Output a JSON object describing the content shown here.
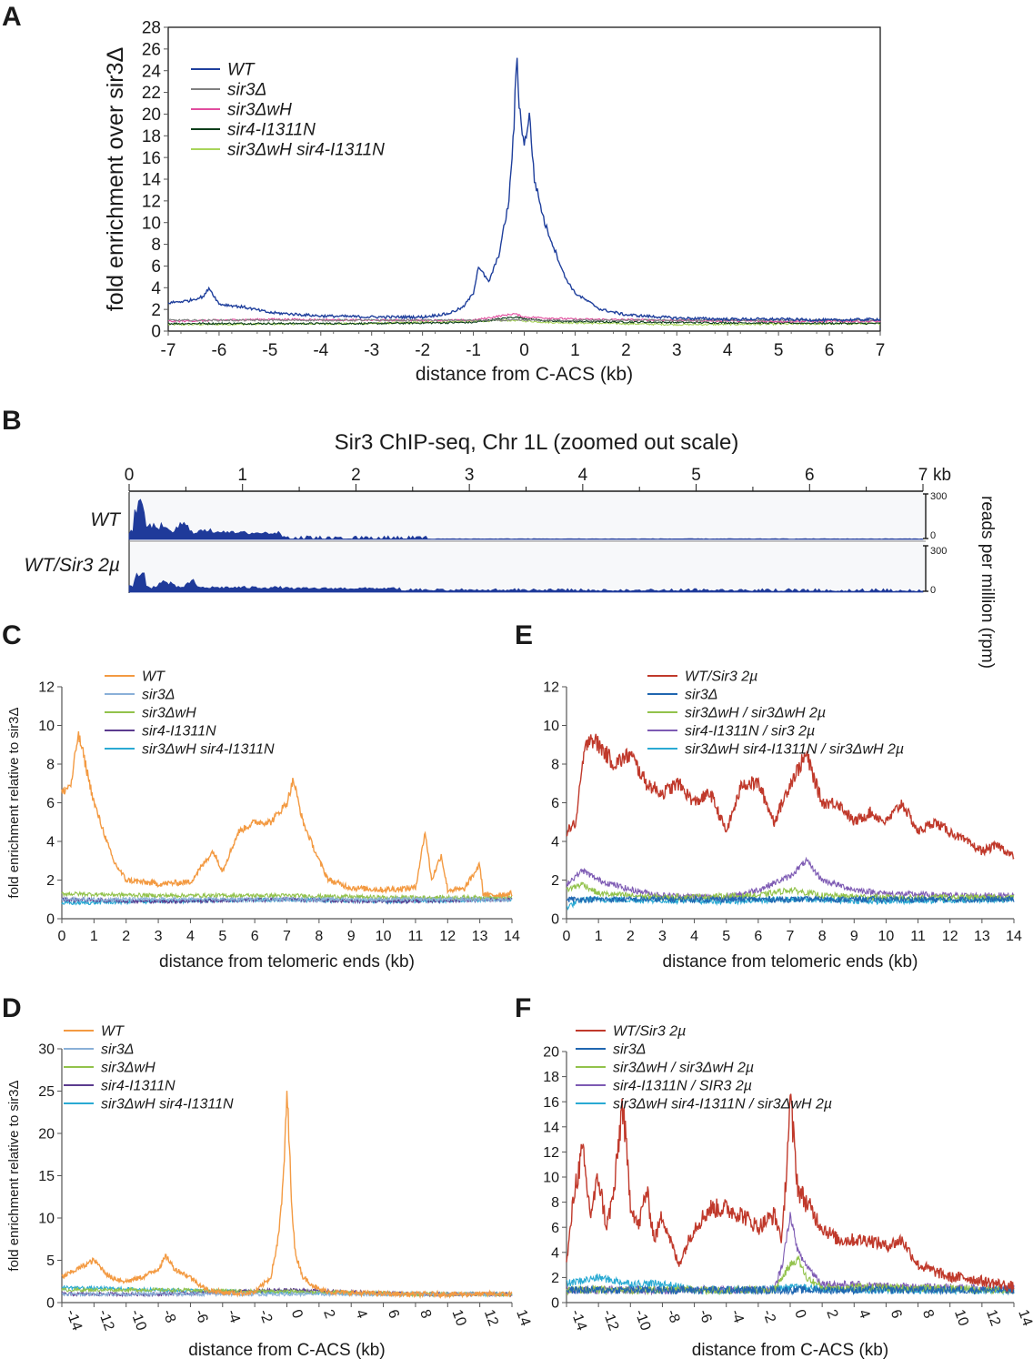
{
  "panel_labels": [
    "A",
    "B",
    "C",
    "D",
    "E",
    "F"
  ],
  "panel_b": {
    "title": "Sir3 ChIP-seq, Chr 1L (zoomed out scale)",
    "axis_ticks": [
      "0",
      "1",
      "2",
      "3",
      "4",
      "5",
      "6"
    ],
    "axis_end_label": "7",
    "axis_unit": "kb",
    "y_axis_label": "reads per million (rpm)",
    "scale_max": "300",
    "scale_min": "0",
    "track_names": [
      "WT",
      "WT/Sir3 2µ"
    ]
  },
  "chart_data": [
    {
      "panel": "A",
      "type": "line",
      "title": "",
      "xlabel": "distance from C-ACS (kb)",
      "ylabel": "fold enrichment over sir3Δ",
      "xlim": [
        -7,
        7
      ],
      "ylim": [
        0,
        28
      ],
      "x_ticks": [
        "-7",
        "-6",
        "-5",
        "-4",
        "-3",
        "-2",
        "-1",
        "0",
        "1",
        "2",
        "3",
        "4",
        "5",
        "6",
        "7"
      ],
      "y_ticks": [
        "0",
        "2",
        "4",
        "6",
        "8",
        "10",
        "12",
        "14",
        "16",
        "18",
        "20",
        "22",
        "24",
        "26",
        "28"
      ],
      "legend": [
        "WT",
        "sir3Δ",
        "sir3ΔwH",
        "sir4-I1311N",
        "sir3ΔwH sir4-I1311N"
      ],
      "legend_position": "top-left",
      "series": [
        {
          "name": "WT",
          "color": "#1f3f9c",
          "x": [
            -7,
            -6.6,
            -6.3,
            -6.2,
            -6,
            -5.5,
            -5,
            -4,
            -3,
            -2,
            -1.5,
            -1.2,
            -1,
            -0.9,
            -0.7,
            -0.5,
            -0.3,
            -0.2,
            -0.15,
            -0.1,
            0,
            0.1,
            0.2,
            0.4,
            0.6,
            0.8,
            1,
            1.5,
            2,
            3,
            4,
            5,
            6,
            7
          ],
          "values": [
            2.6,
            2.8,
            3.2,
            4,
            2.5,
            2.2,
            1.7,
            1.4,
            1.3,
            1.3,
            1.6,
            2.2,
            3.5,
            6,
            4.5,
            7,
            12,
            19,
            25.5,
            21,
            17,
            20,
            14,
            10,
            7.5,
            5,
            3.5,
            2,
            1.5,
            1.2,
            1.1,
            1.1,
            1,
            1.1
          ]
        },
        {
          "name": "sir3Δ",
          "color": "#808080",
          "x": [
            -7,
            -3,
            0,
            3,
            7
          ],
          "values": [
            1,
            1,
            1,
            1,
            1
          ]
        },
        {
          "name": "sir3ΔwH",
          "color": "#e14d9e",
          "x": [
            -7,
            -5,
            -3,
            -1,
            -0.2,
            0,
            1,
            3,
            5,
            7
          ],
          "values": [
            0.9,
            1.1,
            1,
            1,
            1.6,
            1.3,
            1.1,
            1,
            0.9,
            0.9
          ]
        },
        {
          "name": "sir4-I1311N",
          "color": "#0b3d1a",
          "x": [
            -7,
            -3,
            -1,
            -0.2,
            0.5,
            3,
            7
          ],
          "values": [
            0.7,
            0.7,
            0.8,
            1.3,
            0.9,
            0.8,
            0.7
          ]
        },
        {
          "name": "sir3ΔwH sir4-I1311N",
          "color": "#a8d45a",
          "x": [
            -7,
            -3,
            -0.2,
            0.5,
            3,
            7
          ],
          "values": [
            0.6,
            0.7,
            1,
            0.8,
            0.6,
            0.7
          ]
        }
      ]
    },
    {
      "panel": "C",
      "type": "line",
      "xlabel": "distance from telomeric ends (kb)",
      "ylabel": "fold enrichment relative to sir3Δ",
      "xlim": [
        0,
        14
      ],
      "ylim": [
        0,
        12
      ],
      "x_ticks": [
        "0",
        "1",
        "2",
        "3",
        "4",
        "5",
        "6",
        "7",
        "8",
        "9",
        "10",
        "11",
        "12",
        "13",
        "14"
      ],
      "y_ticks": [
        "0",
        "2",
        "4",
        "6",
        "8",
        "10",
        "12"
      ],
      "legend": [
        "WT",
        "sir3Δ",
        "sir3ΔwH",
        "sir4-I1311N",
        "sir3ΔwH sir4-I1311N"
      ],
      "legend_position": "top-center",
      "series": [
        {
          "name": "WT",
          "color": "#f39a42",
          "x": [
            0,
            0.3,
            0.5,
            0.6,
            0.8,
            1,
            1.3,
            1.6,
            2,
            3,
            4,
            4.7,
            5,
            5.5,
            6,
            6.5,
            7,
            7.2,
            7.5,
            8,
            8.3,
            9,
            10,
            11,
            11.3,
            11.5,
            11.8,
            12,
            12.5,
            13,
            13.1,
            13.3,
            14
          ],
          "values": [
            6.5,
            7,
            9.5,
            9,
            7.5,
            6,
            4.5,
            3,
            2,
            1.8,
            1.9,
            3.5,
            2.5,
            4.5,
            5,
            5,
            6,
            7.2,
            5,
            3,
            2,
            1.6,
            1.5,
            1.6,
            4.5,
            2,
            3.3,
            1.5,
            1.5,
            2.8,
            1.3,
            1.2,
            1.3
          ]
        },
        {
          "name": "sir3Δ",
          "color": "#8ab0d8",
          "x": [
            0,
            7,
            14
          ],
          "values": [
            1,
            1,
            1
          ]
        },
        {
          "name": "sir3ΔwH",
          "color": "#92c24b",
          "x": [
            0,
            3,
            7,
            10,
            14
          ],
          "values": [
            1.3,
            1.2,
            1.2,
            1.1,
            1.1
          ]
        },
        {
          "name": "sir4-I1311N",
          "color": "#5b3b8f",
          "x": [
            0,
            3,
            7,
            10,
            14
          ],
          "values": [
            1,
            0.9,
            1,
            0.9,
            1
          ]
        },
        {
          "name": "sir3ΔwH sir4-I1311N",
          "color": "#2aaad3",
          "x": [
            0,
            3,
            7,
            10,
            14
          ],
          "values": [
            0.8,
            0.9,
            1,
            0.9,
            1
          ]
        }
      ]
    },
    {
      "panel": "D",
      "type": "line",
      "xlabel": "distance from C-ACS (kb)",
      "ylabel": "fold enrichment relative to sir3Δ",
      "xlim": [
        -14,
        14
      ],
      "ylim": [
        0,
        30
      ],
      "x_ticks": [
        "-14",
        "-12",
        "-10",
        "-8",
        "-6",
        "-4",
        "-2",
        "0",
        "2",
        "4",
        "6",
        "8",
        "10",
        "12",
        "14"
      ],
      "y_ticks": [
        "0",
        "5",
        "10",
        "15",
        "20",
        "25",
        "30"
      ],
      "legend": [
        "WT",
        "sir3Δ",
        "sir3ΔwH",
        "sir4-I1311N",
        "sir3ΔwH sir4-I1311N"
      ],
      "legend_position": "top-left",
      "series": [
        {
          "name": "WT",
          "color": "#f39a42",
          "x": [
            -14,
            -13,
            -12,
            -11,
            -10,
            -9,
            -8,
            -7.5,
            -7,
            -6,
            -5,
            -4,
            -3,
            -2,
            -1,
            -0.5,
            -0.2,
            0,
            0.3,
            0.5,
            1,
            2,
            3,
            5,
            7,
            9,
            11,
            14
          ],
          "values": [
            3,
            4,
            5,
            3,
            2.5,
            3,
            4,
            5.5,
            4,
            3,
            1.5,
            1.2,
            1.1,
            1.2,
            3,
            8,
            15,
            25,
            12,
            6,
            3,
            1.5,
            1.2,
            1.1,
            1,
            1,
            1,
            1
          ]
        },
        {
          "name": "sir3Δ",
          "color": "#8ab0d8",
          "x": [
            -14,
            0,
            14
          ],
          "values": [
            1,
            1,
            1
          ]
        },
        {
          "name": "sir3ΔwH",
          "color": "#92c24b",
          "x": [
            -14,
            -8,
            0,
            8,
            14
          ],
          "values": [
            1.5,
            1.5,
            1.3,
            1,
            1
          ]
        },
        {
          "name": "sir4-I1311N",
          "color": "#5b3b8f",
          "x": [
            -14,
            -8,
            0,
            8,
            14
          ],
          "values": [
            1,
            1,
            1.5,
            1,
            1
          ]
        },
        {
          "name": "sir3ΔwH sir4-I1311N",
          "color": "#2aaad3",
          "x": [
            -14,
            -8,
            0,
            8,
            14
          ],
          "values": [
            1.8,
            1.5,
            1.2,
            1,
            1
          ]
        }
      ]
    },
    {
      "panel": "E",
      "type": "line",
      "xlabel": "distance from telomeric ends (kb)",
      "ylabel": "",
      "xlim": [
        0,
        14
      ],
      "ylim": [
        0,
        12
      ],
      "x_ticks": [
        "0",
        "1",
        "2",
        "3",
        "4",
        "5",
        "6",
        "7",
        "8",
        "9",
        "10",
        "11",
        "12",
        "13",
        "14"
      ],
      "y_ticks": [
        "0",
        "2",
        "4",
        "6",
        "8",
        "10",
        "12"
      ],
      "legend": [
        "WT/Sir3 2µ",
        "sir3Δ",
        "sir3ΔwH / sir3ΔwH 2µ",
        "sir4-I1311N / sir3 2µ",
        "sir3ΔwH sir4-I1311N / sir3ΔwH 2µ"
      ],
      "legend_position": "top-center",
      "series": [
        {
          "name": "WT/Sir3 2µ",
          "color": "#c0392b",
          "x": [
            0,
            0.3,
            0.5,
            0.7,
            1,
            1.5,
            2,
            2.5,
            3,
            3.5,
            4,
            4.5,
            5,
            5.5,
            6,
            6.5,
            7,
            7.5,
            8,
            8.5,
            9,
            9.5,
            10,
            10.5,
            11,
            11.5,
            12,
            12.5,
            13,
            13.5,
            14
          ],
          "values": [
            4.5,
            5,
            8,
            9.5,
            9,
            8,
            8.5,
            7,
            6.5,
            7,
            6,
            6.5,
            4.5,
            7,
            7,
            5,
            7,
            8.5,
            6,
            6,
            5,
            5.5,
            5,
            6,
            4.5,
            5,
            4.5,
            4,
            3.5,
            3.8,
            3.2
          ]
        },
        {
          "name": "sir3Δ",
          "color": "#2066b0",
          "x": [
            0,
            7,
            14
          ],
          "values": [
            1,
            1,
            1
          ]
        },
        {
          "name": "sir3ΔwH / sir3ΔwH 2µ",
          "color": "#92c24b",
          "x": [
            0,
            0.5,
            1,
            3,
            6,
            7,
            8,
            10,
            14
          ],
          "values": [
            1.5,
            1.8,
            1.3,
            1.1,
            1.2,
            1.5,
            1.2,
            1.1,
            1.1
          ]
        },
        {
          "name": "sir4-I1311N / sir3 2µ",
          "color": "#7d5ab3",
          "x": [
            0,
            0.5,
            1,
            2,
            3,
            5,
            6,
            7,
            7.5,
            8,
            9,
            10,
            12,
            14
          ],
          "values": [
            1.8,
            2.5,
            2,
            1.5,
            1.2,
            1.1,
            1.5,
            2.2,
            3,
            2,
            1.5,
            1.3,
            1.2,
            1.2
          ]
        },
        {
          "name": "sir3ΔwH sir4-I1311N / sir3ΔwH 2µ",
          "color": "#2aaad3",
          "x": [
            0,
            0.5,
            1,
            5,
            7,
            10,
            14
          ],
          "values": [
            0.6,
            1,
            1,
            0.9,
            1,
            0.9,
            1
          ]
        }
      ]
    },
    {
      "panel": "F",
      "type": "line",
      "xlabel": "distance from C-ACS (kb)",
      "ylabel": "",
      "xlim": [
        -14,
        14
      ],
      "ylim": [
        0,
        20
      ],
      "x_ticks": [
        "-14",
        "-12",
        "-10",
        "-8",
        "-6",
        "-4",
        "-2",
        "0",
        "2",
        "4",
        "6",
        "8",
        "10",
        "12",
        "14"
      ],
      "y_ticks": [
        "0",
        "2",
        "4",
        "6",
        "8",
        "10",
        "12",
        "14",
        "16",
        "18",
        "20"
      ],
      "legend": [
        "WT/Sir3 2µ",
        "sir3Δ",
        "sir3ΔwH / sir3ΔwH 2µ",
        "sir4-I1311N / SIR3 2µ",
        "sir3ΔwH sir4-I1311N / sir3ΔwH 2µ"
      ],
      "legend_position": "top-center",
      "series": [
        {
          "name": "WT/Sir3 2µ",
          "color": "#c0392b",
          "x": [
            -14,
            -13.5,
            -13,
            -12.5,
            -12,
            -11.5,
            -11,
            -10.5,
            -10,
            -9.5,
            -9,
            -8.5,
            -8,
            -7.5,
            -7,
            -6,
            -5,
            -4,
            -3,
            -2,
            -1,
            -0.5,
            0,
            0.5,
            1,
            2,
            3,
            4,
            5,
            6,
            7,
            8,
            9,
            10,
            11,
            12,
            13,
            14
          ],
          "values": [
            3,
            9,
            12,
            7,
            10,
            6,
            9,
            16,
            8,
            6,
            9,
            5,
            7,
            5,
            3,
            6,
            7.5,
            7.5,
            7,
            6,
            7,
            5,
            16,
            9,
            8,
            6,
            5,
            5,
            5,
            4.5,
            5,
            3,
            2.5,
            2,
            2,
            1.7,
            1.5,
            1.2
          ]
        },
        {
          "name": "sir3Δ",
          "color": "#2066b0",
          "x": [
            -14,
            0,
            14
          ],
          "values": [
            1,
            1,
            1
          ]
        },
        {
          "name": "sir3ΔwH / sir3ΔwH 2µ",
          "color": "#92c24b",
          "x": [
            -14,
            -8,
            -1,
            0,
            0.5,
            1,
            2,
            6,
            14
          ],
          "values": [
            1,
            1,
            1,
            3,
            3.5,
            2,
            1.2,
            1.2,
            1
          ]
        },
        {
          "name": "sir4-I1311N / SIR3 2µ",
          "color": "#7d5ab3",
          "x": [
            -14,
            -8,
            -1,
            -0.5,
            0,
            0.5,
            1,
            2,
            6,
            14
          ],
          "values": [
            1,
            1,
            1,
            3,
            7,
            4,
            3,
            1.5,
            1.3,
            1.1
          ]
        },
        {
          "name": "sir3ΔwH sir4-I1311N / sir3ΔwH 2µ",
          "color": "#2aaad3",
          "x": [
            -14,
            -12,
            -10,
            -8,
            -6,
            -4,
            -2,
            0,
            4,
            8,
            14
          ],
          "values": [
            1.5,
            2,
            1.5,
            1.5,
            1,
            1,
            1,
            1.2,
            1,
            1,
            1
          ]
        }
      ]
    }
  ]
}
